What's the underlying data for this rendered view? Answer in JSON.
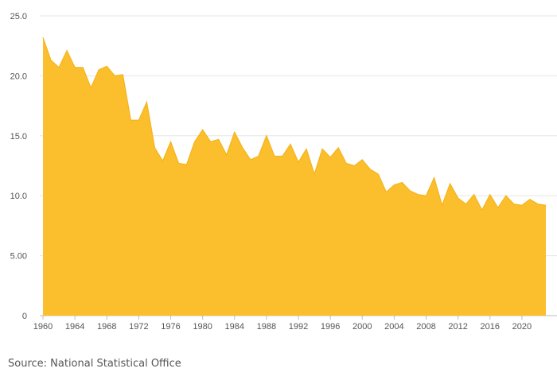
{
  "chart_data": {
    "type": "area",
    "x": [
      1960,
      1961,
      1962,
      1963,
      1964,
      1965,
      1966,
      1967,
      1968,
      1969,
      1970,
      1971,
      1972,
      1973,
      1974,
      1975,
      1976,
      1977,
      1978,
      1979,
      1980,
      1981,
      1982,
      1983,
      1984,
      1985,
      1986,
      1987,
      1988,
      1989,
      1990,
      1991,
      1992,
      1993,
      1994,
      1995,
      1996,
      1997,
      1998,
      1999,
      2000,
      2001,
      2002,
      2003,
      2004,
      2005,
      2006,
      2007,
      2008,
      2009,
      2010,
      2011,
      2012,
      2013,
      2014,
      2015,
      2016,
      2017,
      2018,
      2019,
      2020,
      2021,
      2022,
      2023
    ],
    "values": [
      23.2,
      21.3,
      20.7,
      22.1,
      20.7,
      20.7,
      19.0,
      20.5,
      20.8,
      20.0,
      20.1,
      16.3,
      16.3,
      17.8,
      14.0,
      12.9,
      14.5,
      12.7,
      12.6,
      14.5,
      15.5,
      14.5,
      14.7,
      13.4,
      15.3,
      14.0,
      13.0,
      13.3,
      15.0,
      13.3,
      13.3,
      14.3,
      12.8,
      13.9,
      11.8,
      13.9,
      13.2,
      14.0,
      12.7,
      12.5,
      13.0,
      12.2,
      11.8,
      10.3,
      10.9,
      11.1,
      10.4,
      10.1,
      10.0,
      11.5,
      9.2,
      11.0,
      9.8,
      9.3,
      10.1,
      8.8,
      10.1,
      9.0,
      10.0,
      9.3,
      9.2,
      9.7,
      9.3,
      9.2
    ],
    "ylim": [
      0,
      25
    ],
    "xlim": [
      1960,
      2023
    ],
    "y_ticks": [
      0,
      5,
      10,
      15,
      20,
      25
    ],
    "y_tick_labels": [
      "0",
      "5.00",
      "10.0",
      "15.0",
      "20.0",
      "25.0"
    ],
    "x_ticks": [
      1960,
      1964,
      1968,
      1972,
      1976,
      1980,
      1984,
      1988,
      1992,
      1996,
      2000,
      2004,
      2008,
      2012,
      2016,
      2020
    ],
    "x_tick_labels": [
      "1960",
      "1964",
      "1968",
      "1972",
      "1976",
      "1980",
      "1984",
      "1988",
      "1992",
      "1996",
      "2000",
      "2004",
      "2008",
      "2012",
      "2016",
      "2020"
    ],
    "grid": true,
    "fill_color": "#fbbf2d",
    "line_color": "#f4b41a"
  },
  "source": "Source: National Statistical Office"
}
